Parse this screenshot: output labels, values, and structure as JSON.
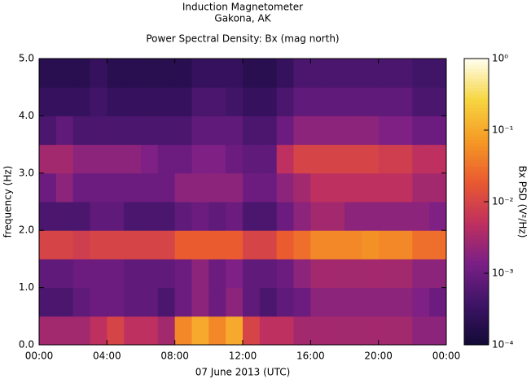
{
  "chart_data": {
    "type": "heatmap",
    "title": "Induction Magnetometer",
    "subtitle": "Gakona, AK",
    "plot_title": "Power Spectral Density: Bx (mag north)",
    "x_label": "07 June 2013 (UTC)",
    "y_label": "frequency (Hz)",
    "colorbar_label": "Bx PSD (V²/Hz)",
    "xlim": [
      0,
      24
    ],
    "xticks": [
      {
        "value": 0,
        "label": "00:00"
      },
      {
        "value": 4,
        "label": "04:00"
      },
      {
        "value": 8,
        "label": "08:00"
      },
      {
        "value": 12,
        "label": "12:00"
      },
      {
        "value": 16,
        "label": "16:00"
      },
      {
        "value": 20,
        "label": "20:00"
      },
      {
        "value": 24,
        "label": "00:00"
      }
    ],
    "ylim": [
      0,
      5
    ],
    "yticks": [
      {
        "value": 0,
        "label": "0.0"
      },
      {
        "value": 1,
        "label": "1.0"
      },
      {
        "value": 2,
        "label": "2.0"
      },
      {
        "value": 3,
        "label": "3.0"
      },
      {
        "value": 4,
        "label": "4.0"
      },
      {
        "value": 5,
        "label": "5.0"
      }
    ],
    "clim": [
      0.0001,
      1
    ],
    "clog": true,
    "cticks": [
      {
        "value": 1,
        "label": "10⁰"
      },
      {
        "value": 0.1,
        "label": "10⁻¹"
      },
      {
        "value": 0.01,
        "label": "10⁻²"
      },
      {
        "value": 0.001,
        "label": "10⁻³"
      },
      {
        "value": 0.0001,
        "label": "10⁻⁴"
      }
    ],
    "colormap": [
      "#120a35",
      "#3d1466",
      "#7a1f86",
      "#c0305e",
      "#ea5a30",
      "#f59a25",
      "#f7d540",
      "#fffff0"
    ],
    "xbins": [
      0,
      1,
      2,
      3,
      4,
      5,
      6,
      7,
      8,
      9,
      10,
      11,
      12,
      13,
      14,
      15,
      16,
      17,
      18,
      19,
      20,
      21,
      22,
      23,
      24
    ],
    "ybins": [
      0,
      0.5,
      1,
      1.5,
      2,
      2.5,
      3,
      3.5,
      4,
      4.5,
      5
    ],
    "z": [
      [
        0.003,
        0.003,
        0.003,
        0.005,
        0.01,
        0.005,
        0.005,
        0.003,
        0.05,
        0.1,
        0.05,
        0.1,
        0.01,
        0.005,
        0.005,
        0.003,
        0.003,
        0.003,
        0.003,
        0.003,
        0.003,
        0.003,
        0.002,
        0.002
      ],
      [
        0.0005,
        0.0005,
        0.0008,
        0.001,
        0.001,
        0.0008,
        0.0008,
        0.0005,
        0.001,
        0.002,
        0.001,
        0.002,
        0.0008,
        0.0005,
        0.0008,
        0.001,
        0.002,
        0.002,
        0.002,
        0.002,
        0.002,
        0.002,
        0.0015,
        0.001
      ],
      [
        0.0008,
        0.0008,
        0.001,
        0.001,
        0.001,
        0.0008,
        0.0008,
        0.0008,
        0.001,
        0.002,
        0.001,
        0.0015,
        0.0008,
        0.0008,
        0.001,
        0.002,
        0.003,
        0.003,
        0.003,
        0.003,
        0.003,
        0.003,
        0.002,
        0.002
      ],
      [
        0.01,
        0.01,
        0.008,
        0.01,
        0.01,
        0.01,
        0.01,
        0.01,
        0.02,
        0.02,
        0.02,
        0.02,
        0.01,
        0.01,
        0.02,
        0.03,
        0.05,
        0.05,
        0.05,
        0.06,
        0.05,
        0.05,
        0.03,
        0.03
      ],
      [
        0.0005,
        0.0005,
        0.0005,
        0.0008,
        0.0008,
        0.0005,
        0.0005,
        0.0005,
        0.0008,
        0.001,
        0.0008,
        0.001,
        0.0005,
        0.0005,
        0.001,
        0.002,
        0.003,
        0.003,
        0.002,
        0.002,
        0.002,
        0.002,
        0.002,
        0.0015
      ],
      [
        0.001,
        0.002,
        0.001,
        0.001,
        0.001,
        0.001,
        0.001,
        0.001,
        0.002,
        0.002,
        0.002,
        0.002,
        0.001,
        0.001,
        0.002,
        0.003,
        0.005,
        0.005,
        0.005,
        0.005,
        0.005,
        0.005,
        0.003,
        0.003
      ],
      [
        0.003,
        0.003,
        0.002,
        0.002,
        0.002,
        0.002,
        0.0015,
        0.001,
        0.001,
        0.0015,
        0.0015,
        0.001,
        0.0008,
        0.0008,
        0.005,
        0.01,
        0.01,
        0.01,
        0.01,
        0.01,
        0.008,
        0.008,
        0.005,
        0.005
      ],
      [
        0.0005,
        0.0008,
        0.0005,
        0.0005,
        0.0005,
        0.0005,
        0.0005,
        0.0005,
        0.0005,
        0.0008,
        0.0008,
        0.0008,
        0.0005,
        0.0005,
        0.001,
        0.002,
        0.002,
        0.002,
        0.002,
        0.002,
        0.0015,
        0.0015,
        0.001,
        0.001
      ],
      [
        0.0003,
        0.0003,
        0.0003,
        0.0004,
        0.0003,
        0.0003,
        0.0003,
        0.0003,
        0.0003,
        0.0005,
        0.0005,
        0.0004,
        0.0003,
        0.0003,
        0.0005,
        0.0008,
        0.0008,
        0.0008,
        0.0008,
        0.0008,
        0.0008,
        0.0008,
        0.0005,
        0.0005
      ],
      [
        0.0002,
        0.0002,
        0.0002,
        0.0003,
        0.0002,
        0.0002,
        0.0002,
        0.0002,
        0.0002,
        0.0003,
        0.0003,
        0.0003,
        0.0002,
        0.0002,
        0.0003,
        0.0005,
        0.0005,
        0.0005,
        0.0005,
        0.0005,
        0.0005,
        0.0005,
        0.0004,
        0.0004
      ]
    ]
  }
}
